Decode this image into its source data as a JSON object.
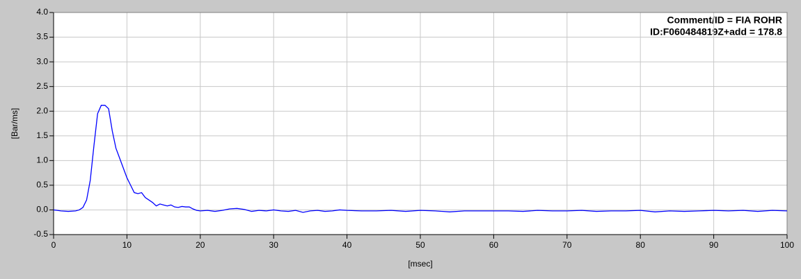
{
  "chart_data": {
    "type": "line",
    "annotations": [
      "Comment/ID = FIA ROHR",
      "ID:F060484819Z+add = 178.8"
    ],
    "xlabel": "[msec]",
    "ylabel": "[Bar/ms]",
    "xlim": [
      0,
      100
    ],
    "ylim": [
      -0.5,
      4.0
    ],
    "xticks": [
      0,
      10,
      20,
      30,
      40,
      50,
      60,
      70,
      80,
      90,
      100
    ],
    "yticks": [
      {
        "value": -0.5,
        "label": "-0.5"
      },
      {
        "value": 0,
        "label": "0.0"
      },
      {
        "value": 0.5,
        "label": "0.5"
      },
      {
        "value": 1,
        "label": "1.0"
      },
      {
        "value": 1.5,
        "label": "1.5"
      },
      {
        "value": 2,
        "label": "2.0"
      },
      {
        "value": 2.5,
        "label": "2.5"
      },
      {
        "value": 3,
        "label": "3.0"
      },
      {
        "value": 3.5,
        "label": "3.5"
      },
      {
        "value": 4,
        "label": "4.0"
      }
    ],
    "grid": true,
    "x": [
      0,
      0.5,
      1,
      2,
      3,
      3.5,
      4,
      4.5,
      5,
      5.5,
      6,
      6.5,
      7,
      7.5,
      8,
      8.5,
      9,
      9.5,
      10,
      10.5,
      11,
      11.5,
      12,
      12.5,
      13,
      13.5,
      14,
      14.5,
      15,
      15.5,
      16,
      16.5,
      17,
      17.5,
      18,
      18.5,
      19,
      19.5,
      20,
      21,
      22,
      23,
      24,
      25,
      26,
      27,
      28,
      29,
      30,
      31,
      32,
      33,
      34,
      35,
      36,
      37,
      38,
      39,
      40,
      42,
      44,
      46,
      48,
      50,
      52,
      54,
      56,
      58,
      60,
      62,
      64,
      66,
      68,
      70,
      72,
      74,
      76,
      78,
      80,
      82,
      84,
      86,
      88,
      90,
      92,
      94,
      96,
      98,
      100
    ],
    "series": [
      {
        "name": "ROHR",
        "color": "#0000ff",
        "values": [
          0,
          -0.01,
          -0.02,
          -0.03,
          -0.02,
          0,
          0.05,
          0.2,
          0.6,
          1.3,
          1.95,
          2.12,
          2.12,
          2.05,
          1.6,
          1.25,
          1.05,
          0.85,
          0.65,
          0.5,
          0.35,
          0.33,
          0.35,
          0.25,
          0.2,
          0.15,
          0.08,
          0.12,
          0.1,
          0.08,
          0.1,
          0.06,
          0.05,
          0.07,
          0.06,
          0.06,
          0.02,
          -0.01,
          -0.02,
          -0.01,
          -0.03,
          -0.01,
          0.02,
          0.03,
          0.01,
          -0.03,
          -0.01,
          -0.02,
          0,
          -0.02,
          -0.03,
          -0.01,
          -0.05,
          -0.02,
          -0.01,
          -0.03,
          -0.02,
          0,
          -0.01,
          -0.02,
          -0.02,
          -0.01,
          -0.03,
          -0.01,
          -0.02,
          -0.04,
          -0.02,
          -0.02,
          -0.02,
          -0.02,
          -0.03,
          -0.01,
          -0.02,
          -0.02,
          -0.01,
          -0.03,
          -0.02,
          -0.02,
          -0.01,
          -0.04,
          -0.02,
          -0.03,
          -0.02,
          -0.01,
          -0.02,
          -0.01,
          -0.03,
          -0.01,
          -0.02
        ]
      }
    ]
  }
}
